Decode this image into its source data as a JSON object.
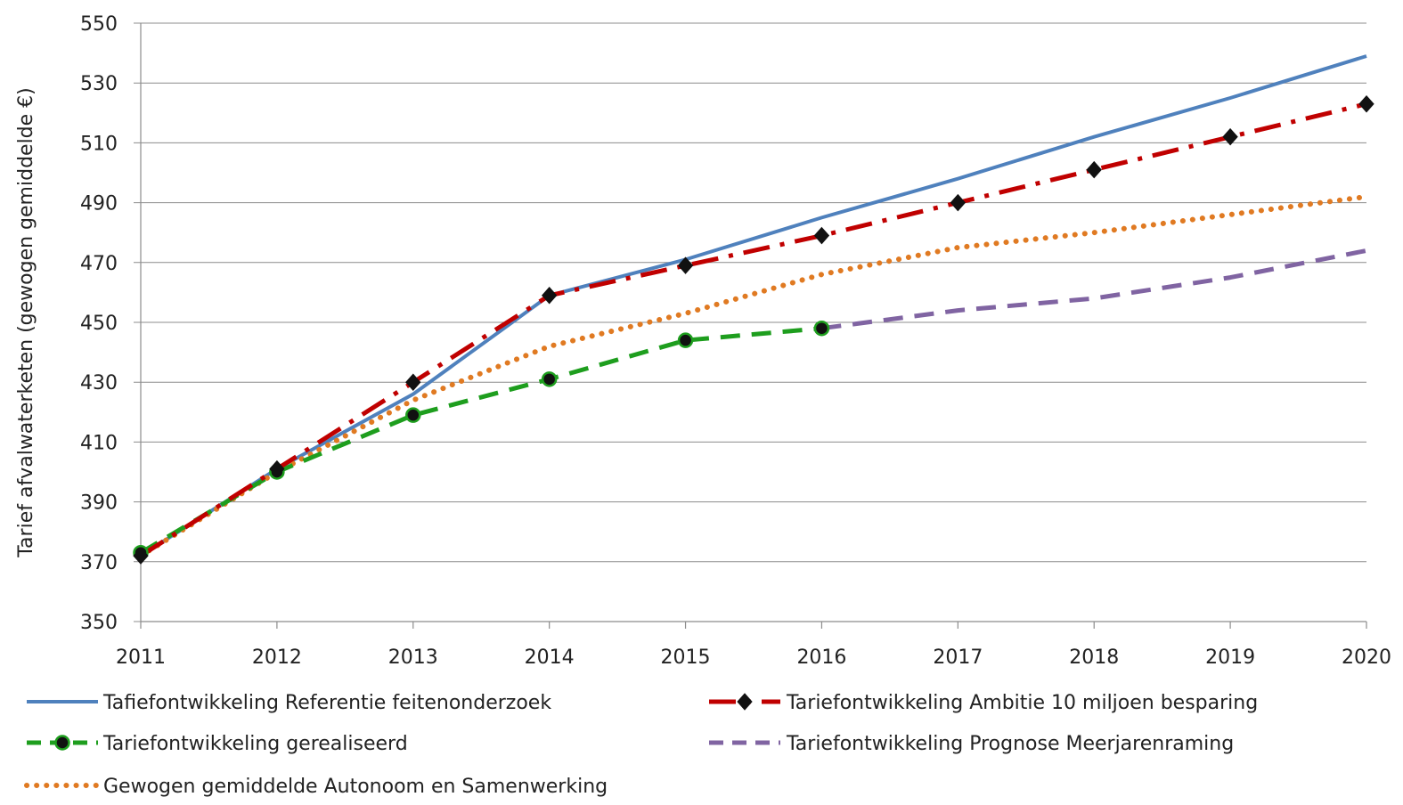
{
  "chart_data": {
    "type": "line",
    "title": "",
    "xlabel": "",
    "ylabel": "Tarief afvalwaterketen  (gewogen gemiddelde €)",
    "x": [
      2011,
      2012,
      2013,
      2014,
      2015,
      2016,
      2017,
      2018,
      2019,
      2020
    ],
    "x_tick_labels": [
      "2011",
      "2012",
      "2013",
      "2014",
      "2015",
      "2016",
      "2017",
      "2018",
      "2019",
      "2020"
    ],
    "ylim": [
      350,
      550
    ],
    "y_ticks": [
      350,
      370,
      390,
      410,
      430,
      450,
      470,
      490,
      510,
      530,
      550
    ],
    "y_tick_labels": [
      "350",
      "370",
      "390",
      "410",
      "430",
      "450",
      "470",
      "490",
      "510",
      "530",
      "550"
    ],
    "grid": "horizontal",
    "legend_position": "bottom",
    "series": [
      {
        "name": "Tafiefontwikkeling Referentie feitenonderzoek",
        "color": "#4F81BD",
        "style": "solid",
        "marker": "none",
        "values": [
          372,
          401,
          426,
          459,
          471,
          485,
          498,
          512,
          525,
          539
        ]
      },
      {
        "name": "Tariefontwikkeling Ambitie 10 miljoen besparing",
        "color": "#C00000",
        "style": "dash-dot",
        "marker": "diamond",
        "values": [
          372,
          401,
          430,
          459,
          469,
          479,
          490,
          501,
          512,
          523
        ]
      },
      {
        "name": "Tariefontwikkeling gerealiseerd",
        "color": "#1E9E1E",
        "style": "dashed",
        "marker": "circle",
        "values": [
          373,
          400,
          419,
          431,
          444,
          448,
          null,
          null,
          null,
          null
        ]
      },
      {
        "name": "Tariefontwikkeling Prognose Meerjarenraming",
        "color": "#8064A2",
        "style": "dashed",
        "marker": "none",
        "values": [
          null,
          null,
          null,
          null,
          null,
          448,
          454,
          458,
          465,
          474
        ]
      },
      {
        "name": "Gewogen gemiddelde Autonoom en Samenwerking",
        "color": "#E07A22",
        "style": "dotted",
        "marker": "none",
        "values": [
          372,
          400,
          424,
          442,
          453,
          466,
          475,
          480,
          486,
          492
        ]
      }
    ]
  }
}
